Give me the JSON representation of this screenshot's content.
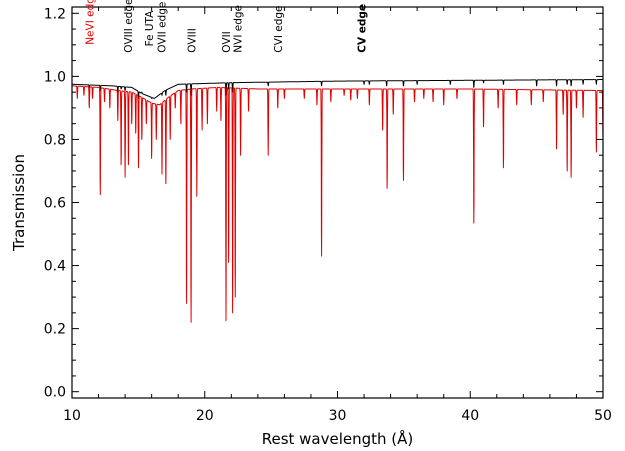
{
  "chart_data": {
    "type": "line",
    "title": "",
    "xlabel": "Rest wavelength (Å)",
    "ylabel": "Transmission",
    "xlim": [
      10,
      50
    ],
    "ylim": [
      -0.02,
      1.22
    ],
    "xticks": [
      10,
      20,
      30,
      40,
      50
    ],
    "xtick_labels": [
      "10",
      "20",
      "30",
      "40",
      "50"
    ],
    "yticks": [
      0.0,
      0.2,
      0.4,
      0.6,
      0.8,
      1.0,
      1.2
    ],
    "ytick_labels": [
      "0.0",
      "0.2",
      "0.4",
      "0.6",
      "0.8",
      "1.0",
      "1.2"
    ],
    "grid": false,
    "legend": "none",
    "series": [
      {
        "color": "#000000",
        "baseline": [
          [
            10,
            0.975
          ],
          [
            13,
            0.97
          ],
          [
            14.5,
            0.965
          ],
          [
            15.3,
            0.945
          ],
          [
            16.2,
            0.93
          ],
          [
            17.0,
            0.955
          ],
          [
            18.0,
            0.975
          ],
          [
            22,
            0.98
          ],
          [
            30,
            0.985
          ],
          [
            50,
            0.99
          ]
        ],
        "lines": [
          [
            11.3,
            0.965
          ],
          [
            12.13,
            0.955
          ],
          [
            13.45,
            0.95
          ],
          [
            13.7,
            0.96
          ],
          [
            14.0,
            0.955
          ],
          [
            15.01,
            0.93
          ],
          [
            15.26,
            0.95
          ],
          [
            16.0,
            0.93
          ],
          [
            16.78,
            0.94
          ],
          [
            17.07,
            0.94
          ],
          [
            18.63,
            0.95
          ],
          [
            18.97,
            0.94
          ],
          [
            21.6,
            0.94
          ],
          [
            21.8,
            0.96
          ],
          [
            22.1,
            0.95
          ],
          [
            24.78,
            0.97
          ],
          [
            28.8,
            0.97
          ],
          [
            31.5,
            0.985
          ],
          [
            32.0,
            0.975
          ],
          [
            32.4,
            0.975
          ],
          [
            33.7,
            0.97
          ],
          [
            34.97,
            0.97
          ],
          [
            36.0,
            0.975
          ],
          [
            38.5,
            0.975
          ],
          [
            40.27,
            0.965
          ],
          [
            41.0,
            0.98
          ],
          [
            42.5,
            0.975
          ],
          [
            45.0,
            0.97
          ],
          [
            46.5,
            0.97
          ],
          [
            47.3,
            0.975
          ],
          [
            47.6,
            0.97
          ],
          [
            48.5,
            0.975
          ],
          [
            49.5,
            0.975
          ]
        ]
      },
      {
        "color": "#e00000",
        "baseline": [
          [
            10,
            0.97
          ],
          [
            12,
            0.965
          ],
          [
            13.5,
            0.955
          ],
          [
            14.5,
            0.95
          ],
          [
            15.2,
            0.935
          ],
          [
            16.0,
            0.915
          ],
          [
            16.6,
            0.91
          ],
          [
            17.3,
            0.935
          ],
          [
            18.0,
            0.955
          ],
          [
            19.0,
            0.96
          ],
          [
            21,
            0.965
          ],
          [
            24,
            0.96
          ],
          [
            30,
            0.96
          ],
          [
            40,
            0.96
          ],
          [
            50,
            0.955
          ]
        ],
        "lines": [
          [
            10.4,
            0.93
          ],
          [
            10.9,
            0.94
          ],
          [
            11.3,
            0.9
          ],
          [
            11.55,
            0.93
          ],
          [
            12.13,
            0.625
          ],
          [
            12.45,
            0.92
          ],
          [
            12.85,
            0.9
          ],
          [
            13.45,
            0.86
          ],
          [
            13.7,
            0.72
          ],
          [
            14.0,
            0.68
          ],
          [
            14.25,
            0.72
          ],
          [
            14.5,
            0.85
          ],
          [
            14.8,
            0.82
          ],
          [
            15.01,
            0.71
          ],
          [
            15.26,
            0.8
          ],
          [
            15.6,
            0.85
          ],
          [
            16.0,
            0.74
          ],
          [
            16.35,
            0.8
          ],
          [
            16.78,
            0.69
          ],
          [
            17.07,
            0.66
          ],
          [
            17.4,
            0.8
          ],
          [
            17.78,
            0.9
          ],
          [
            18.2,
            0.85
          ],
          [
            18.63,
            0.28
          ],
          [
            18.97,
            0.22
          ],
          [
            19.4,
            0.62
          ],
          [
            19.8,
            0.83
          ],
          [
            20.2,
            0.85
          ],
          [
            20.9,
            0.89
          ],
          [
            21.22,
            0.86
          ],
          [
            21.6,
            0.225
          ],
          [
            21.8,
            0.41
          ],
          [
            22.1,
            0.25
          ],
          [
            22.3,
            0.3
          ],
          [
            22.7,
            0.75
          ],
          [
            23.3,
            0.89
          ],
          [
            24.78,
            0.75
          ],
          [
            25.5,
            0.9
          ],
          [
            26.0,
            0.93
          ],
          [
            27.5,
            0.93
          ],
          [
            28.45,
            0.91
          ],
          [
            28.8,
            0.43
          ],
          [
            29.5,
            0.92
          ],
          [
            30.5,
            0.94
          ],
          [
            31.0,
            0.925
          ],
          [
            31.5,
            0.93
          ],
          [
            32.4,
            0.91
          ],
          [
            33.4,
            0.83
          ],
          [
            33.74,
            0.645
          ],
          [
            34.2,
            0.88
          ],
          [
            34.97,
            0.67
          ],
          [
            35.8,
            0.92
          ],
          [
            36.5,
            0.93
          ],
          [
            37.2,
            0.92
          ],
          [
            38.0,
            0.91
          ],
          [
            39.0,
            0.93
          ],
          [
            40.27,
            0.535
          ],
          [
            41.0,
            0.84
          ],
          [
            42.1,
            0.9
          ],
          [
            42.5,
            0.71
          ],
          [
            43.5,
            0.91
          ],
          [
            44.6,
            0.91
          ],
          [
            45.5,
            0.92
          ],
          [
            46.5,
            0.77
          ],
          [
            47.0,
            0.88
          ],
          [
            47.3,
            0.7
          ],
          [
            47.6,
            0.68
          ],
          [
            48.0,
            0.9
          ],
          [
            48.5,
            0.87
          ],
          [
            49.5,
            0.76
          ],
          [
            50.0,
            0.8
          ]
        ]
      }
    ],
    "annotations": [
      {
        "text": "NeVI edge",
        "x": 11.3,
        "y": 1.1,
        "color": "#e00000",
        "bold": false
      },
      {
        "text": "OVIII edge",
        "x": 14.2,
        "y": 1.075,
        "color": "#000000",
        "bold": false
      },
      {
        "text": "Fe UTA",
        "x": 15.8,
        "y": 1.095,
        "color": "#000000",
        "bold": false
      },
      {
        "text": "OVII edge",
        "x": 16.75,
        "y": 1.075,
        "color": "#000000",
        "bold": false
      },
      {
        "text": "OVIII",
        "x": 19.0,
        "y": 1.075,
        "color": "#000000",
        "bold": false
      },
      {
        "text": "OVII",
        "x": 21.6,
        "y": 1.075,
        "color": "#000000",
        "bold": false
      },
      {
        "text": "NVI edge",
        "x": 22.45,
        "y": 1.075,
        "color": "#000000",
        "bold": false
      },
      {
        "text": "CVI edge",
        "x": 25.5,
        "y": 1.075,
        "color": "#000000",
        "bold": false
      },
      {
        "text": "CV edge",
        "x": 31.8,
        "y": 1.075,
        "color": "#000000",
        "bold": true
      }
    ]
  }
}
